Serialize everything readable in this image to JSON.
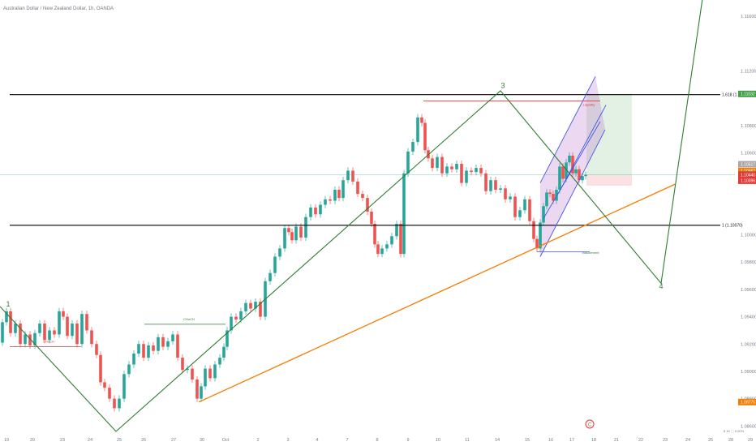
{
  "title": "Australian Dollar / New Zealand Dollar, 1h, OANDA",
  "footer_right": "8  10 ⬚ 0.00%",
  "chart_data": {
    "type": "line",
    "title": "Australian Dollar / New Zealand Dollar, 1h, OANDA",
    "ylim": [
      1.0856,
      1.1172
    ],
    "y_ticks": [
      "1.11800",
      "1.11600",
      "1.11200",
      "1.10800",
      "1.10600",
      "1.10400",
      "1.10000",
      "1.09800",
      "1.09600",
      "1.09400",
      "1.09200",
      "1.09000",
      "1.08800",
      "1.08600"
    ],
    "y_tick_values": [
      1.118,
      1.116,
      1.112,
      1.108,
      1.106,
      1.104,
      1.1,
      1.098,
      1.096,
      1.094,
      1.092,
      1.09,
      1.088,
      1.086
    ],
    "x_ticks": [
      "19",
      "20",
      "23",
      "24",
      "25",
      "26",
      "27",
      "30",
      "Oct",
      "2",
      "3",
      "4",
      "7",
      "8",
      "9",
      "10",
      "11",
      "14",
      "15",
      "16",
      "17",
      "18",
      "21",
      "22",
      "23",
      "24",
      "25",
      "28",
      "29"
    ],
    "x_tick_idx": [
      8,
      40,
      77,
      111,
      147,
      177,
      214,
      249,
      278,
      318,
      355,
      391,
      428,
      465,
      503,
      540,
      576,
      613,
      650,
      679,
      705,
      732,
      760,
      790,
      820,
      848,
      876,
      901,
      925
    ],
    "x_idx_range": [
      0,
      932
    ],
    "fib_levels": [
      {
        "label": "1.618 (1.11027)",
        "value": 1.11027
      },
      {
        "label": "1 (1.10070)",
        "value": 1.1007
      }
    ],
    "wave_labels": [
      {
        "text": "1",
        "x": 10,
        "y": 1.09475
      },
      {
        "text": "3",
        "x": 620,
        "y": 1.11075
      },
      {
        "text": "4",
        "x": 815,
        "y": 1.09605
      }
    ],
    "elliott_path": [
      [
        0,
        1.09475
      ],
      [
        143,
        1.0856
      ],
      [
        617,
        1.11055
      ],
      [
        815,
        1.09645
      ],
      [
        866,
        1.1173
      ]
    ],
    "orange_trend": [
      [
        245,
        1.08775
      ],
      [
        832,
        1.1037
      ]
    ],
    "price_line": 1.1044,
    "price_tags": [
      {
        "text": "1.11032",
        "value": 1.11032,
        "color": "#43a047"
      },
      {
        "text": "1.10517",
        "value": 1.10517,
        "color": "#a9a9a9"
      },
      {
        "text": "1.10467",
        "value": 1.10467,
        "color": "#f57c00"
      },
      {
        "text": "1.10442",
        "value": 1.10442,
        "color": "#43a047"
      },
      {
        "text": "1.10440",
        "value": 1.1044,
        "color": "#e53935"
      },
      {
        "text": "1.10396",
        "value": 1.10396,
        "color": "#e53935"
      },
      {
        "text": "1.08775",
        "value": 1.08775,
        "color": "#f57c00"
      }
    ],
    "annotations": [
      {
        "text": "CHoCH",
        "x": 60,
        "y": 1.0921,
        "color": "#e53935"
      },
      {
        "text": "CHoCH",
        "x": 233,
        "y": 1.09375,
        "color": "#2e7d32"
      },
      {
        "text": "Liquidity",
        "x": 726,
        "y": 1.10945,
        "color": "#e53935"
      },
      {
        "text": "Inducement",
        "x": 728,
        "y": 1.0986,
        "color": "#2e7d32"
      }
    ],
    "choch_lines": [
      {
        "x1": 12,
        "x2": 100,
        "y": 1.0918,
        "color": "#e53935"
      },
      {
        "x1": 178,
        "x2": 278,
        "y": 1.09345,
        "color": "#2e7d32"
      },
      {
        "x1": 522,
        "x2": 740,
        "y": 1.1098,
        "color": "#e53935"
      },
      {
        "x1": 662,
        "x2": 727,
        "y": 1.09875,
        "color": "#3c5ae8"
      }
    ],
    "channel": {
      "lines": [
        [
          [
            666,
            1.0984
          ],
          [
            746,
            1.1077
          ]
        ],
        [
          [
            666,
            1.1038
          ],
          [
            734,
            1.1116
          ]
        ],
        [
          [
            688,
            1.103
          ],
          [
            747,
            1.1095
          ]
        ],
        [
          [
            670,
            1.1012
          ],
          [
            740,
            1.1083
          ]
        ]
      ],
      "fill": [
        [
          666,
          1.0984
        ],
        [
          746,
          1.1077
        ],
        [
          734,
          1.1116
        ],
        [
          666,
          1.1038
        ]
      ]
    },
    "position": {
      "x1": 723,
      "x2": 779,
      "stop": 1.1036,
      "entry": 1.1044,
      "target": 1.11032
    },
    "price_series": [
      [
        0,
        1.0921
      ],
      [
        6,
        1.0936
      ],
      [
        10,
        1.0944
      ],
      [
        16,
        1.0928
      ],
      [
        22,
        1.0935
      ],
      [
        28,
        1.092
      ],
      [
        34,
        1.0927
      ],
      [
        40,
        1.0919
      ],
      [
        46,
        1.0928
      ],
      [
        52,
        1.0935
      ],
      [
        58,
        1.0923
      ],
      [
        64,
        1.093
      ],
      [
        70,
        1.0927
      ],
      [
        76,
        1.0944
      ],
      [
        80,
        1.094
      ],
      [
        86,
        1.0926
      ],
      [
        92,
        1.0935
      ],
      [
        98,
        1.092
      ],
      [
        104,
        1.0942
      ],
      [
        110,
        1.093
      ],
      [
        116,
        1.092
      ],
      [
        122,
        1.0912
      ],
      [
        126,
        1.0892
      ],
      [
        132,
        1.0888
      ],
      [
        138,
        1.088
      ],
      [
        144,
        1.0873
      ],
      [
        150,
        1.088
      ],
      [
        156,
        1.0898
      ],
      [
        162,
        1.0905
      ],
      [
        168,
        1.0913
      ],
      [
        174,
        1.092
      ],
      [
        180,
        1.091
      ],
      [
        186,
        1.0919
      ],
      [
        192,
        1.0915
      ],
      [
        198,
        1.0925
      ],
      [
        204,
        1.0918
      ],
      [
        210,
        1.0922
      ],
      [
        216,
        1.0927
      ],
      [
        222,
        1.091
      ],
      [
        228,
        1.0901
      ],
      [
        234,
        1.0902
      ],
      [
        240,
        1.0894
      ],
      [
        246,
        1.088
      ],
      [
        250,
        1.0889
      ],
      [
        256,
        1.0902
      ],
      [
        262,
        1.0895
      ],
      [
        268,
        1.0905
      ],
      [
        274,
        1.091
      ],
      [
        278,
        1.0918
      ],
      [
        282,
        1.093
      ],
      [
        288,
        1.094
      ],
      [
        294,
        1.0938
      ],
      [
        300,
        1.0944
      ],
      [
        306,
        1.095
      ],
      [
        312,
        1.0946
      ],
      [
        318,
        1.0951
      ],
      [
        324,
        1.094
      ],
      [
        330,
        1.0966
      ],
      [
        336,
        1.0972
      ],
      [
        342,
        1.0984
      ],
      [
        348,
        1.099
      ],
      [
        354,
        1.1005
      ],
      [
        358,
        1.1002
      ],
      [
        362,
        1.0996
      ],
      [
        368,
        1.1006
      ],
      [
        374,
        1.0998
      ],
      [
        380,
        1.1013
      ],
      [
        386,
        1.102
      ],
      [
        392,
        1.1015
      ],
      [
        398,
        1.1022
      ],
      [
        404,
        1.1026
      ],
      [
        410,
        1.1025
      ],
      [
        416,
        1.1033
      ],
      [
        420,
        1.1027
      ],
      [
        426,
        1.104
      ],
      [
        432,
        1.1047
      ],
      [
        438,
        1.1039
      ],
      [
        444,
        1.103
      ],
      [
        450,
        1.1027
      ],
      [
        456,
        1.1017
      ],
      [
        460,
        1.1008
      ],
      [
        464,
        1.0993
      ],
      [
        468,
        1.0986
      ],
      [
        474,
        1.099
      ],
      [
        480,
        1.0993
      ],
      [
        486,
        1.0999
      ],
      [
        492,
        1.1008
      ],
      [
        496,
        1.0986
      ],
      [
        500,
        1.1045
      ],
      [
        506,
        1.1061
      ],
      [
        512,
        1.1068
      ],
      [
        518,
        1.1086
      ],
      [
        522,
        1.1082
      ],
      [
        526,
        1.1062
      ],
      [
        530,
        1.1056
      ],
      [
        536,
        1.1049
      ],
      [
        542,
        1.1057
      ],
      [
        548,
        1.1045
      ],
      [
        554,
        1.105
      ],
      [
        560,
        1.1048
      ],
      [
        566,
        1.1052
      ],
      [
        572,
        1.1038
      ],
      [
        578,
        1.1047
      ],
      [
        584,
        1.1046
      ],
      [
        590,
        1.1049
      ],
      [
        596,
        1.1045
      ],
      [
        602,
        1.1032
      ],
      [
        608,
        1.104
      ],
      [
        614,
        1.1033
      ],
      [
        620,
        1.1034
      ],
      [
        626,
        1.1026
      ],
      [
        632,
        1.1028
      ],
      [
        638,
        1.1013
      ],
      [
        644,
        1.1018
      ],
      [
        650,
        1.1026
      ],
      [
        656,
        1.101
      ],
      [
        660,
        1.0997
      ],
      [
        664,
        1.099
      ],
      [
        668,
        1.1009
      ],
      [
        672,
        1.1021
      ],
      [
        676,
        1.1031
      ],
      [
        680,
        1.103
      ],
      [
        684,
        1.1025
      ],
      [
        688,
        1.1033
      ],
      [
        692,
        1.105
      ],
      [
        696,
        1.1041
      ],
      [
        700,
        1.1053
      ],
      [
        704,
        1.1058
      ],
      [
        708,
        1.1045
      ],
      [
        712,
        1.1048
      ],
      [
        716,
        1.104
      ],
      [
        720,
        1.1043
      ],
      [
        724,
        1.1044
      ]
    ]
  }
}
